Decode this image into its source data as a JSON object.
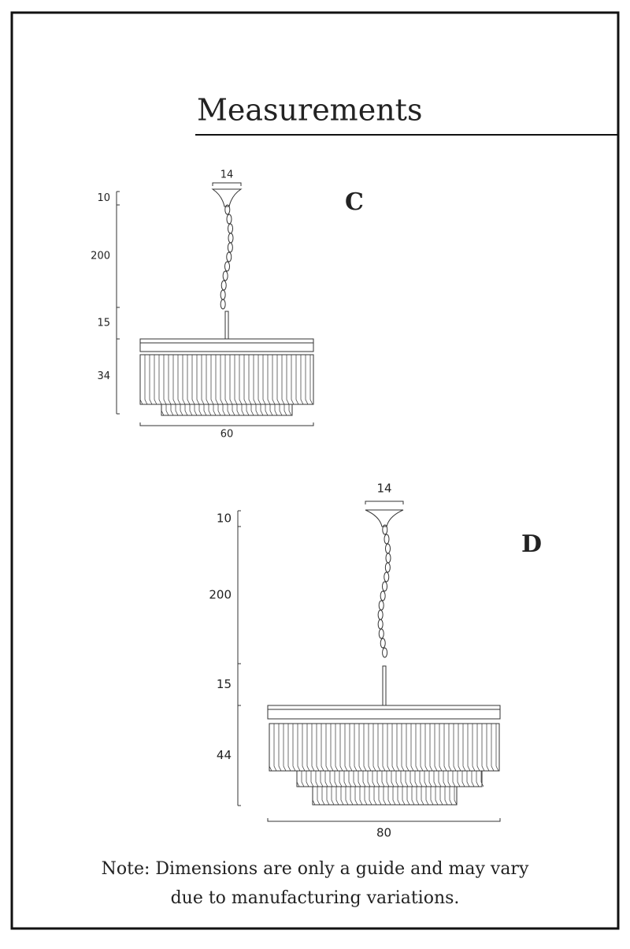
{
  "title": "Measurements",
  "diagrams": [
    {
      "label": "C",
      "dimensions": {
        "canopy_width": 14,
        "canopy_height": 10,
        "chain": 200,
        "rod": 15,
        "body_height": 34,
        "body_width": 60
      }
    },
    {
      "label": "D",
      "dimensions": {
        "canopy_width": 14,
        "canopy_height": 10,
        "chain": 200,
        "rod": 15,
        "body_height": 44,
        "body_width": 80
      }
    }
  ],
  "note": [
    "Note: Dimensions are only a guide and may vary",
    "due to manufacturing variations."
  ]
}
